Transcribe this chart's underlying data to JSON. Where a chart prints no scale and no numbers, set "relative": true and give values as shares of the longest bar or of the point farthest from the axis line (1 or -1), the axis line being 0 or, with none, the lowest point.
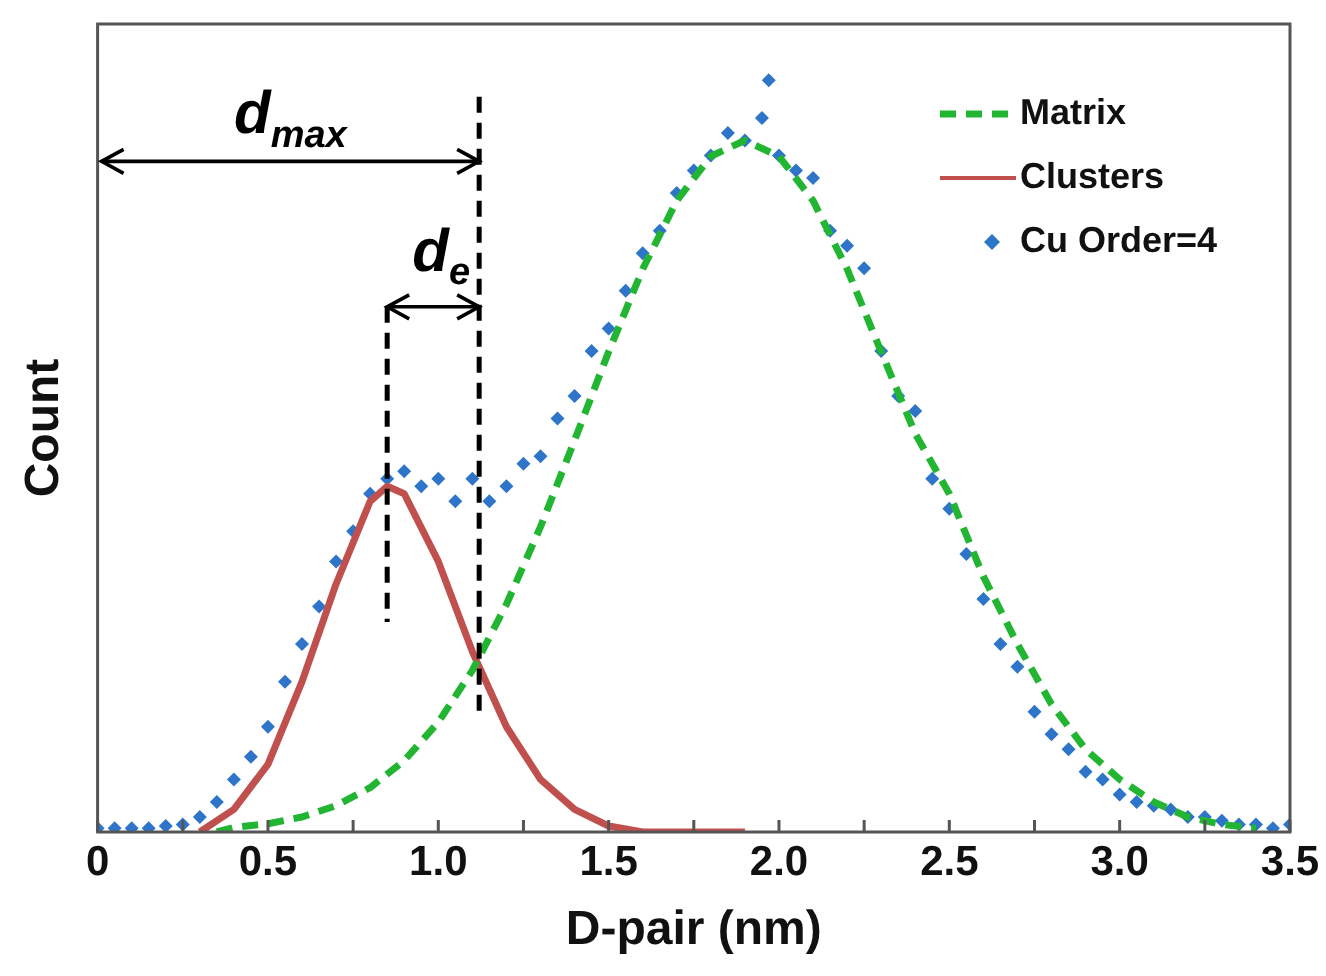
{
  "chart_data": {
    "type": "line",
    "xlabel": "D-pair (nm)",
    "ylabel": "Count",
    "relative": true,
    "xlim": [
      0,
      3.5
    ],
    "xticks": [
      0,
      {
        "value": 0.25,
        "label": null
      },
      0.5,
      {
        "value": 0.75,
        "label": null
      },
      {
        "value": 1,
        "label": "1.0"
      },
      {
        "value": 1.25,
        "label": null
      },
      1.5,
      {
        "value": 1.75,
        "label": null
      },
      {
        "value": 2,
        "label": "2.0"
      },
      {
        "value": 2.25,
        "label": null
      },
      2.5,
      {
        "value": 2.75,
        "label": null
      },
      {
        "value": 3,
        "label": "3.0"
      },
      {
        "value": 3.25,
        "label": null
      },
      3.5
    ],
    "tick_labels": "x",
    "grid": false,
    "legend": "top right",
    "series": [
      {
        "name": "Matrix",
        "line_style": "dashed",
        "marker": "none",
        "color": "#22b531",
        "x": [
          0.35,
          0.4,
          0.5,
          0.6,
          0.7,
          0.8,
          0.9,
          1.0,
          1.1,
          1.2,
          1.3,
          1.4,
          1.5,
          1.6,
          1.7,
          1.8,
          1.9,
          2.0,
          2.1,
          2.2,
          2.3,
          2.4,
          2.5,
          2.6,
          2.7,
          2.8,
          2.9,
          3.0,
          3.1,
          3.2,
          3.3,
          3.4
        ],
        "values": [
          0,
          0.006,
          0.011,
          0.02,
          0.035,
          0.059,
          0.095,
          0.146,
          0.215,
          0.303,
          0.406,
          0.521,
          0.639,
          0.749,
          0.84,
          0.899,
          0.92,
          0.899,
          0.84,
          0.749,
          0.639,
          0.53,
          0.45,
          0.34,
          0.25,
          0.17,
          0.11,
          0.07,
          0.04,
          0.02,
          0.01,
          0.005
        ]
      },
      {
        "name": "Clusters",
        "line_style": "solid",
        "marker": "none",
        "color": "#c0504d",
        "x": [
          0.3,
          0.4,
          0.5,
          0.6,
          0.7,
          0.8,
          0.85,
          0.9,
          1.0,
          1.1,
          1.2,
          1.3,
          1.4,
          1.5,
          1.6,
          1.9
        ],
        "values": [
          0,
          0.03,
          0.09,
          0.2,
          0.33,
          0.44,
          0.46,
          0.45,
          0.36,
          0.24,
          0.14,
          0.07,
          0.03,
          0.008,
          0,
          0
        ]
      },
      {
        "name": "Cu Order=4",
        "type": "scatter",
        "marker": "diamond",
        "color": "#2e75c9",
        "x": [
          0,
          0.05,
          0.1,
          0.15,
          0.2,
          0.25,
          0.3,
          0.35,
          0.4,
          0.45,
          0.5,
          0.55,
          0.6,
          0.65,
          0.7,
          0.75,
          0.8,
          0.85,
          0.9,
          0.95,
          1.0,
          1.05,
          1.1,
          1.15,
          1.2,
          1.25,
          1.3,
          1.35,
          1.4,
          1.45,
          1.5,
          1.55,
          1.6,
          1.65,
          1.7,
          1.75,
          1.8,
          1.85,
          1.9,
          1.95,
          1.97,
          2.0,
          2.05,
          2.1,
          2.15,
          2.2,
          2.25,
          2.3,
          2.35,
          2.4,
          2.45,
          2.5,
          2.55,
          2.6,
          2.65,
          2.7,
          2.75,
          2.8,
          2.85,
          2.9,
          2.95,
          3.0,
          3.05,
          3.1,
          3.15,
          3.2,
          3.25,
          3.3,
          3.35,
          3.4,
          3.45,
          3.5
        ],
        "values": [
          0.005,
          0.005,
          0.005,
          0.005,
          0.008,
          0.01,
          0.02,
          0.04,
          0.07,
          0.1,
          0.14,
          0.2,
          0.25,
          0.3,
          0.36,
          0.4,
          0.45,
          0.47,
          0.48,
          0.46,
          0.47,
          0.44,
          0.47,
          0.44,
          0.46,
          0.49,
          0.5,
          0.55,
          0.58,
          0.64,
          0.67,
          0.72,
          0.77,
          0.8,
          0.85,
          0.88,
          0.9,
          0.93,
          0.92,
          0.95,
          1.0,
          0.9,
          0.88,
          0.87,
          0.8,
          0.78,
          0.75,
          0.64,
          0.58,
          0.56,
          0.47,
          0.43,
          0.37,
          0.31,
          0.25,
          0.22,
          0.16,
          0.13,
          0.11,
          0.08,
          0.07,
          0.05,
          0.04,
          0.035,
          0.03,
          0.02,
          0.02,
          0.015,
          0.01,
          0.01,
          0.005,
          0.01
        ]
      }
    ],
    "ref_lines": [
      {
        "axis": "x",
        "value": 0.85,
        "label": "d$_{e}$",
        "line_style": "dashed",
        "color": "#000000"
      },
      {
        "axis": "x",
        "value": 1.12,
        "label": "d$_{max}$",
        "line_style": "dashed",
        "color": "#000000"
      }
    ]
  }
}
